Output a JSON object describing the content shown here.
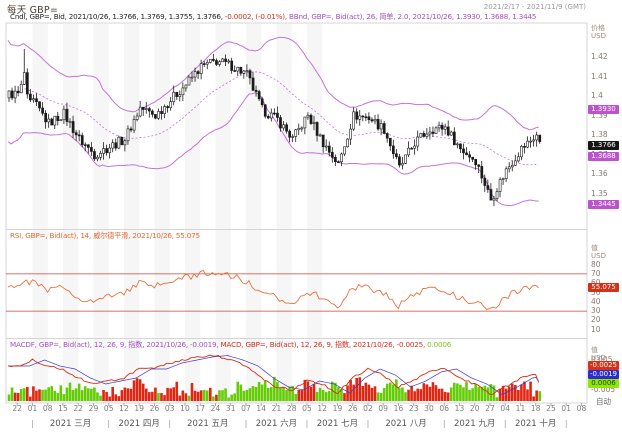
{
  "header": {
    "title": "每天 GBP=",
    "date_range": "2021/2/17 - 2021/11/9 (GMT)"
  },
  "legend": {
    "candle": "Cndl, GBP=, Bid, 2021/10/26, 1.3766, 1.3769, 1.3755, 1.3766,",
    "change": " -0.0002, (-0.01%),",
    "bollinger": " BBnd, GBP=, Bid(act), 26, 简单, 2.0, 2021/10/26, 1.3930, 1.3688, 1.3445",
    "rsi": "RSI, GBP=, Bid(act), 14, 威尔德平滑, 2021/10/26, 55.075",
    "macdf": "MACDF, GBP=, Bid(act), 12, 26, 9, 指数, 2021/10/26, -0.0019,",
    "macd": " MACD, GBP=, Bid(act), 12, 26, 9, 指数, 2021/10/26, -0.0025,",
    "macd_hist": " 0.0006"
  },
  "axis": {
    "price_title": "价格",
    "rsi_title": "值",
    "macd_title": "值",
    "currency": "USD",
    "auto_label": "自动",
    "bb_upper": "1.3930",
    "bb_mid": "1.3688",
    "bb_lower": "1.3445",
    "last_price": "1.3766",
    "rsi_value": "55.075",
    "macd_value": "-0.0025",
    "macdf_value": "-0.0019",
    "hist_value": "0.0006"
  },
  "chart_data": {
    "type": "candlestick",
    "instrument": "GBP=",
    "period": "每天",
    "title": "每天 GBP=",
    "price_ticks": [
      "1.42",
      "1.41",
      "1.4",
      "1.39",
      "1.38",
      "1.37",
      "1.36",
      "1.35"
    ],
    "rsi_ticks": [
      80,
      70,
      60,
      50,
      40,
      30,
      20,
      10
    ],
    "macd_ticks": [
      0.005,
      -0.005
    ],
    "x_day_ticks": [
      "22",
      "01",
      "08",
      "15",
      "22",
      "29",
      "05",
      "12",
      "19",
      "26",
      "03",
      "10",
      "17",
      "24",
      "31",
      "07",
      "14",
      "21",
      "28",
      "05",
      "12",
      "19",
      "26",
      "02",
      "09",
      "16",
      "23",
      "30",
      "06",
      "13",
      "20",
      "27",
      "04",
      "11",
      "18",
      "25",
      "01",
      "08"
    ],
    "x_months": [
      "2021 三月",
      "2021 四月",
      "2021 五月",
      "2021 六月",
      "2021 七月",
      "2021 八月",
      "2021 九月",
      "2021 十月"
    ],
    "month_boundary_ticks": [
      1,
      6,
      10,
      15,
      19,
      23,
      28,
      32,
      36
    ],
    "price_range": [
      1.332,
      1.437
    ],
    "last_candle": {
      "date": "2021/10/26",
      "open": 1.3766,
      "high": 1.3769,
      "low": 1.3755,
      "close": 1.3766,
      "change": "-0.0002",
      "change_pct": "-0.01%"
    },
    "bollinger": {
      "period": 26,
      "ma_type": "简单",
      "mult": 2.0,
      "upper": 1.393,
      "middle": 1.3688,
      "lower": 1.3445
    },
    "rsi": {
      "period": 14,
      "smoothing": "威尔德平滑",
      "last": 55.075,
      "overbought": 70,
      "oversold": 30
    },
    "macd": {
      "fast": 12,
      "slow": 26,
      "signal": 9,
      "ma_type": "指数",
      "last_macd": -0.0025,
      "last_signal": -0.0019,
      "last_hist": 0.0006
    },
    "weekly_close_anchors": [
      1.401,
      1.397,
      1.386,
      1.391,
      1.378,
      1.37,
      1.374,
      1.378,
      1.394,
      1.39,
      1.398,
      1.406,
      1.415,
      1.418,
      1.4155,
      1.411,
      1.393,
      1.388,
      1.378,
      1.39,
      1.376,
      1.365,
      1.39,
      1.389,
      1.383,
      1.363,
      1.376,
      1.383,
      1.384,
      1.373,
      1.367,
      1.347,
      1.362,
      1.373,
      1.38,
      1.3766
    ],
    "weekly_rsi_anchors": [
      58,
      62,
      52,
      56,
      45,
      40,
      46,
      50,
      60,
      56,
      62,
      66,
      70,
      72,
      68,
      62,
      48,
      45,
      38,
      52,
      44,
      34,
      56,
      55,
      50,
      36,
      48,
      53,
      54,
      43,
      40,
      30,
      45,
      53,
      58,
      55
    ],
    "weekly_macd_anchors": [
      0.003,
      0.005,
      0.003,
      0.002,
      -0.001,
      -0.003,
      -0.002,
      -0.001,
      0.002,
      0.002,
      0.004,
      0.005,
      0.006,
      0.0065,
      0.005,
      0.003,
      -0.001,
      -0.004,
      -0.005,
      -0.002,
      -0.003,
      -0.006,
      -0.001,
      0.002,
      0.0,
      -0.004,
      -0.002,
      0.001,
      0.002,
      -0.001,
      -0.003,
      -0.0065,
      -0.004,
      -0.001,
      0.0,
      -0.0025
    ],
    "overrides": {
      "4": {
        "c": 1.406
      },
      "5": {
        "c": 1.412,
        "h": 1.4241
      },
      "6": {
        "c": 1.401
      },
      "7": {
        "c": 1.398
      }
    }
  },
  "colors": {
    "bollinger": "#c473dc",
    "candle": "#1a1a1a",
    "rsi_line": "#e8713c",
    "rsi_band_line": "#cc4233",
    "macd_line": "#d82c10",
    "macd_signal": "#3a3ad0",
    "macd_hist_pos": "#63cc05",
    "macd_hist_neg": "#e02613",
    "label_purple": "#bb53cc",
    "label_black": "#151515",
    "label_red": "#d23318",
    "label_blue": "#2b2bd0",
    "label_green": "#8fe800"
  }
}
